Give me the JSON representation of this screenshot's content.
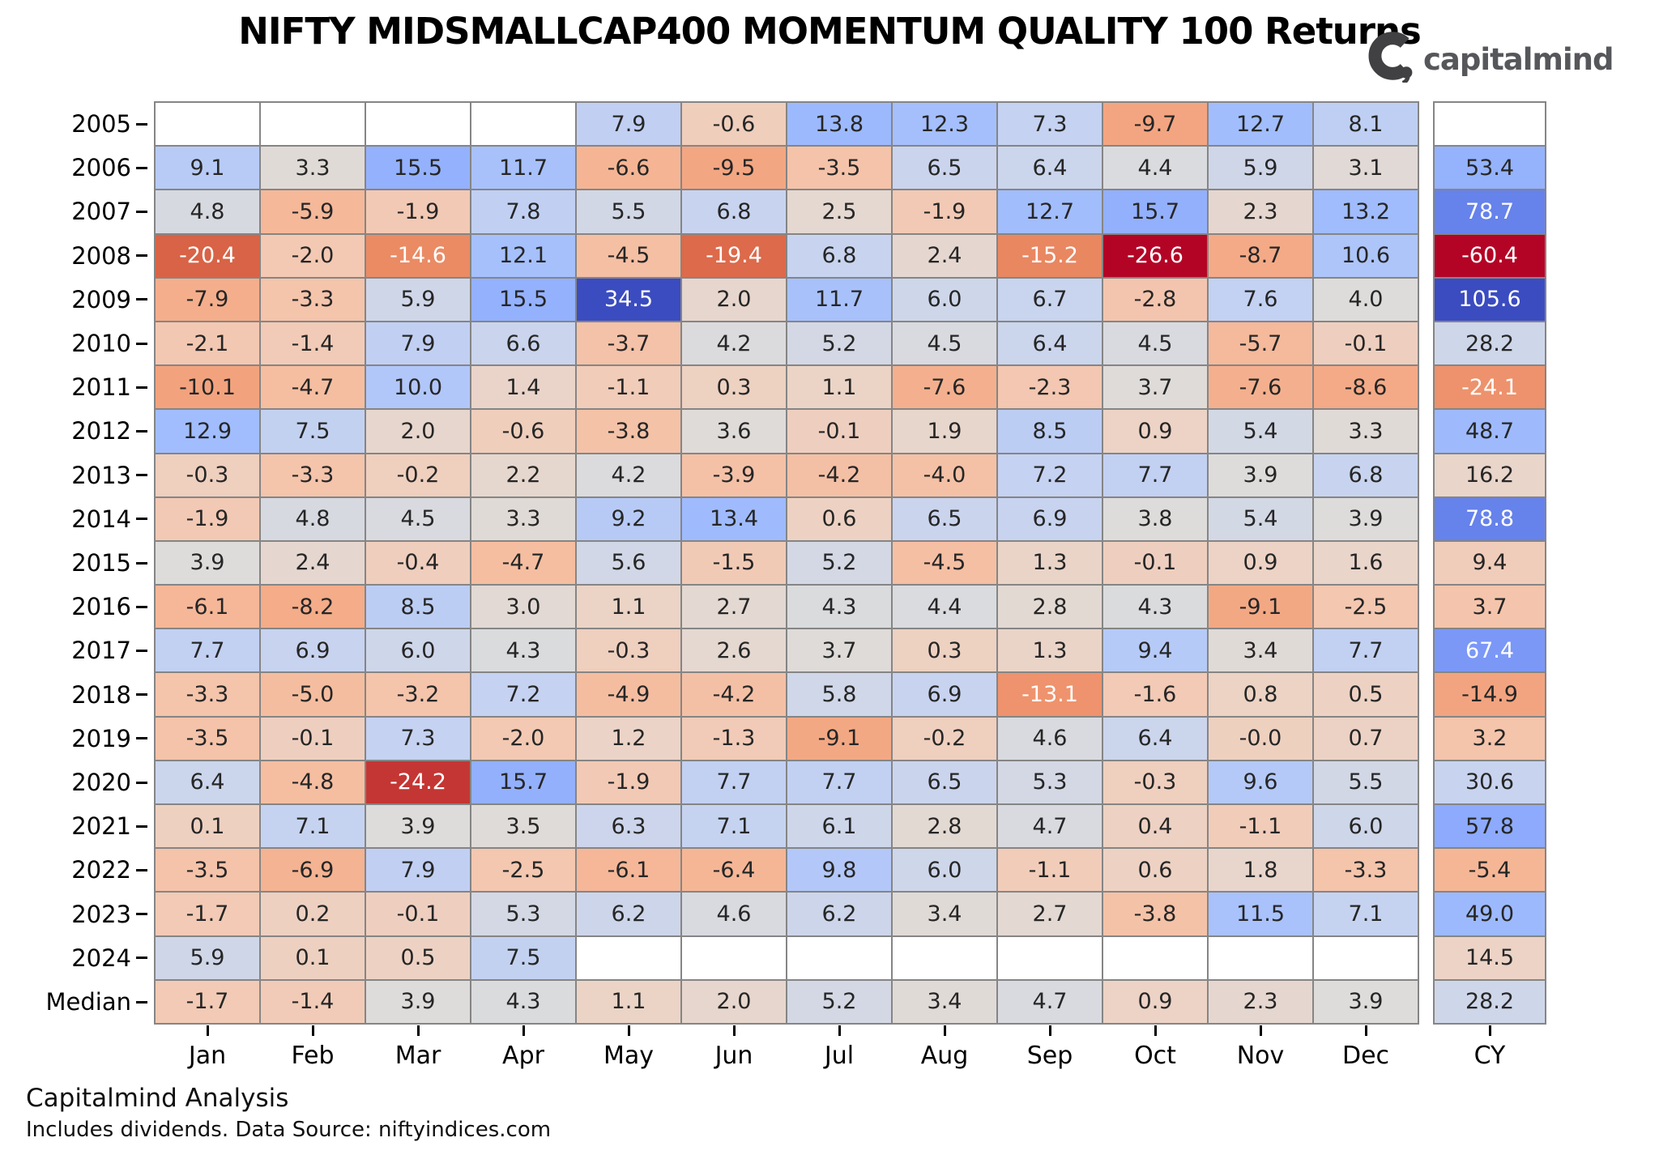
{
  "title": "NIFTY MIDSMALLCAP400 MOMENTUM QUALITY 100 Returns",
  "logo": {
    "brand": "capitalmind",
    "icon": "capitalmind-c-comma-icon"
  },
  "footer": {
    "line1": "Capitalmind Analysis",
    "line2": "Includes dividends. Data Source: niftyindices.com"
  },
  "chart_data": {
    "type": "heatmap",
    "title": "NIFTY MIDSMALLCAP400 MOMENTUM QUALITY 100 Returns",
    "columns": [
      "Jan",
      "Feb",
      "Mar",
      "Apr",
      "May",
      "Jun",
      "Jul",
      "Aug",
      "Sep",
      "Oct",
      "Nov",
      "Dec"
    ],
    "cy_column": "CY",
    "rows": [
      {
        "label": "2005",
        "monthly": [
          null,
          null,
          null,
          null,
          "7.9",
          "-0.6",
          "13.8",
          "12.3",
          "7.3",
          "-9.7",
          "12.7",
          "8.1"
        ],
        "cy": null
      },
      {
        "label": "2006",
        "monthly": [
          "9.1",
          "3.3",
          "15.5",
          "11.7",
          "-6.6",
          "-9.5",
          "-3.5",
          "6.5",
          "6.4",
          "4.4",
          "5.9",
          "3.1"
        ],
        "cy": "53.4"
      },
      {
        "label": "2007",
        "monthly": [
          "4.8",
          "-5.9",
          "-1.9",
          "7.8",
          "5.5",
          "6.8",
          "2.5",
          "-1.9",
          "12.7",
          "15.7",
          "2.3",
          "13.2"
        ],
        "cy": "78.7"
      },
      {
        "label": "2008",
        "monthly": [
          "-20.4",
          "-2.0",
          "-14.6",
          "12.1",
          "-4.5",
          "-19.4",
          "6.8",
          "2.4",
          "-15.2",
          "-26.6",
          "-8.7",
          "10.6"
        ],
        "cy": "-60.4"
      },
      {
        "label": "2009",
        "monthly": [
          "-7.9",
          "-3.3",
          "5.9",
          "15.5",
          "34.5",
          "2.0",
          "11.7",
          "6.0",
          "6.7",
          "-2.8",
          "7.6",
          "4.0"
        ],
        "cy": "105.6"
      },
      {
        "label": "2010",
        "monthly": [
          "-2.1",
          "-1.4",
          "7.9",
          "6.6",
          "-3.7",
          "4.2",
          "5.2",
          "4.5",
          "6.4",
          "4.5",
          "-5.7",
          "-0.1"
        ],
        "cy": "28.2"
      },
      {
        "label": "2011",
        "monthly": [
          "-10.1",
          "-4.7",
          "10.0",
          "1.4",
          "-1.1",
          "0.3",
          "1.1",
          "-7.6",
          "-2.3",
          "3.7",
          "-7.6",
          "-8.6"
        ],
        "cy": "-24.1"
      },
      {
        "label": "2012",
        "monthly": [
          "12.9",
          "7.5",
          "2.0",
          "-0.6",
          "-3.8",
          "3.6",
          "-0.1",
          "1.9",
          "8.5",
          "0.9",
          "5.4",
          "3.3"
        ],
        "cy": "48.7"
      },
      {
        "label": "2013",
        "monthly": [
          "-0.3",
          "-3.3",
          "-0.2",
          "2.2",
          "4.2",
          "-3.9",
          "-4.2",
          "-4.0",
          "7.2",
          "7.7",
          "3.9",
          "6.8"
        ],
        "cy": "16.2"
      },
      {
        "label": "2014",
        "monthly": [
          "-1.9",
          "4.8",
          "4.5",
          "3.3",
          "9.2",
          "13.4",
          "0.6",
          "6.5",
          "6.9",
          "3.8",
          "5.4",
          "3.9"
        ],
        "cy": "78.8"
      },
      {
        "label": "2015",
        "monthly": [
          "3.9",
          "2.4",
          "-0.4",
          "-4.7",
          "5.6",
          "-1.5",
          "5.2",
          "-4.5",
          "1.3",
          "-0.1",
          "0.9",
          "1.6"
        ],
        "cy": "9.4"
      },
      {
        "label": "2016",
        "monthly": [
          "-6.1",
          "-8.2",
          "8.5",
          "3.0",
          "1.1",
          "2.7",
          "4.3",
          "4.4",
          "2.8",
          "4.3",
          "-9.1",
          "-2.5"
        ],
        "cy": "3.7"
      },
      {
        "label": "2017",
        "monthly": [
          "7.7",
          "6.9",
          "6.0",
          "4.3",
          "-0.3",
          "2.6",
          "3.7",
          "0.3",
          "1.3",
          "9.4",
          "3.4",
          "7.7"
        ],
        "cy": "67.4"
      },
      {
        "label": "2018",
        "monthly": [
          "-3.3",
          "-5.0",
          "-3.2",
          "7.2",
          "-4.9",
          "-4.2",
          "5.8",
          "6.9",
          "-13.1",
          "-1.6",
          "0.8",
          "0.5"
        ],
        "cy": "-14.9"
      },
      {
        "label": "2019",
        "monthly": [
          "-3.5",
          "-0.1",
          "7.3",
          "-2.0",
          "1.2",
          "-1.3",
          "-9.1",
          "-0.2",
          "4.6",
          "6.4",
          "-0.0",
          "0.7"
        ],
        "cy": "3.2"
      },
      {
        "label": "2020",
        "monthly": [
          "6.4",
          "-4.8",
          "-24.2",
          "15.7",
          "-1.9",
          "7.7",
          "7.7",
          "6.5",
          "5.3",
          "-0.3",
          "9.6",
          "5.5"
        ],
        "cy": "30.6"
      },
      {
        "label": "2021",
        "monthly": [
          "0.1",
          "7.1",
          "3.9",
          "3.5",
          "6.3",
          "7.1",
          "6.1",
          "2.8",
          "4.7",
          "0.4",
          "-1.1",
          "6.0"
        ],
        "cy": "57.8"
      },
      {
        "label": "2022",
        "monthly": [
          "-3.5",
          "-6.9",
          "7.9",
          "-2.5",
          "-6.1",
          "-6.4",
          "9.8",
          "6.0",
          "-1.1",
          "0.6",
          "1.8",
          "-3.3"
        ],
        "cy": "-5.4"
      },
      {
        "label": "2023",
        "monthly": [
          "-1.7",
          "0.2",
          "-0.1",
          "5.3",
          "6.2",
          "4.6",
          "6.2",
          "3.4",
          "2.7",
          "-3.8",
          "11.5",
          "7.1"
        ],
        "cy": "49.0"
      },
      {
        "label": "2024",
        "monthly": [
          "5.9",
          "0.1",
          "0.5",
          "7.5",
          null,
          null,
          null,
          null,
          null,
          null,
          null,
          null
        ],
        "cy": "14.5"
      },
      {
        "label": "Median",
        "monthly": [
          "-1.7",
          "-1.4",
          "3.9",
          "4.3",
          "1.1",
          "2.0",
          "5.2",
          "3.4",
          "4.7",
          "0.9",
          "2.3",
          "3.9"
        ],
        "cy": "28.2"
      }
    ],
    "color_scale": {
      "palette": "coolwarm_r",
      "monthly": {
        "vmin": -26.6,
        "vmax": 34.5
      },
      "cy": {
        "vmin": -60.4,
        "vmax": 105.6
      },
      "blue_means": "positive return",
      "red_means": "negative return"
    },
    "legend": "none",
    "grid": "on"
  }
}
